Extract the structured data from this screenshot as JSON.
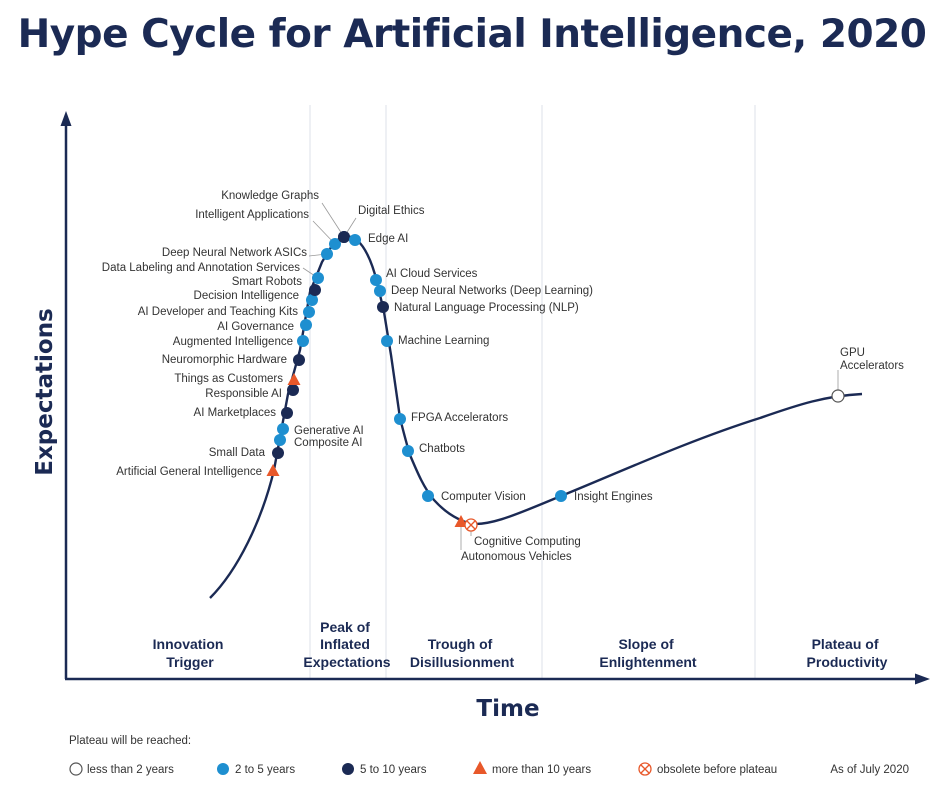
{
  "title": "Hype Cycle for Artificial Intelligence, 2020",
  "axes": {
    "y": "Expectations",
    "x": "Time"
  },
  "phases": [
    {
      "lines": [
        "Innovation",
        "Trigger"
      ]
    },
    {
      "lines": [
        "Peak of",
        "Inflated",
        "Expectations"
      ]
    },
    {
      "lines": [
        "Trough of",
        "Disillusionment"
      ]
    },
    {
      "lines": [
        "Slope of",
        "Enlightenment"
      ]
    },
    {
      "lines": [
        "Plateau of",
        "Productivity"
      ]
    }
  ],
  "legend": {
    "title": "Plateau will be reached:",
    "items": [
      {
        "key": "lt2",
        "label": "less than 2 years"
      },
      {
        "key": "y2to5",
        "label": "2 to 5 years"
      },
      {
        "key": "y5to10",
        "label": "5 to 10 years"
      },
      {
        "key": "gt10",
        "label": "more than 10 years"
      },
      {
        "key": "obsolete",
        "label": "obsolete before plateau"
      }
    ],
    "as_of": "As of July 2020"
  },
  "colors": {
    "navy": "#1b2a54",
    "lt2": "#ffffff",
    "y2to5": "#1e8fd0",
    "y5to10": "#1b2a54",
    "gt10": "#e8582a",
    "obsolete": "#e8582a"
  },
  "technologies": [
    {
      "name": "Artificial General Intelligence",
      "category": "gt10"
    },
    {
      "name": "Small Data",
      "category": "y5to10"
    },
    {
      "name": "Composite AI",
      "category": "y2to5"
    },
    {
      "name": "Generative AI",
      "category": "y2to5"
    },
    {
      "name": "AI Marketplaces",
      "category": "y5to10"
    },
    {
      "name": "Responsible AI",
      "category": "y5to10"
    },
    {
      "name": "Things as Customers",
      "category": "gt10"
    },
    {
      "name": "Neuromorphic Hardware",
      "category": "y5to10"
    },
    {
      "name": "Augmented Intelligence",
      "category": "y2to5"
    },
    {
      "name": "AI Governance",
      "category": "y2to5"
    },
    {
      "name": "AI Developer and Teaching Kits",
      "category": "y2to5"
    },
    {
      "name": "Decision Intelligence",
      "category": "y2to5"
    },
    {
      "name": "Smart Robots",
      "category": "y5to10"
    },
    {
      "name": "Data Labeling and Annotation Services",
      "category": "y2to5"
    },
    {
      "name": "Deep Neural Network ASICs",
      "category": "y2to5"
    },
    {
      "name": "Intelligent Applications",
      "category": "y2to5"
    },
    {
      "name": "Knowledge Graphs",
      "category": "y5to10"
    },
    {
      "name": "Digital Ethics",
      "category": "y5to10"
    },
    {
      "name": "Edge AI",
      "category": "y2to5"
    },
    {
      "name": "AI Cloud Services",
      "category": "y2to5"
    },
    {
      "name": "Deep Neural Networks (Deep Learning)",
      "category": "y2to5"
    },
    {
      "name": "Natural Language Processing (NLP)",
      "category": "y5to10"
    },
    {
      "name": "Machine Learning",
      "category": "y2to5"
    },
    {
      "name": "FPGA Accelerators",
      "category": "y2to5"
    },
    {
      "name": "Chatbots",
      "category": "y2to5"
    },
    {
      "name": "Computer Vision",
      "category": "y2to5"
    },
    {
      "name": "Autonomous Vehicles",
      "category": "gt10"
    },
    {
      "name": "Cognitive Computing",
      "category": "obsolete"
    },
    {
      "name": "Insight Engines",
      "category": "y2to5"
    },
    {
      "name": "GPU Accelerators",
      "category": "lt2",
      "lines": [
        "GPU",
        "Accelerators"
      ]
    }
  ]
}
